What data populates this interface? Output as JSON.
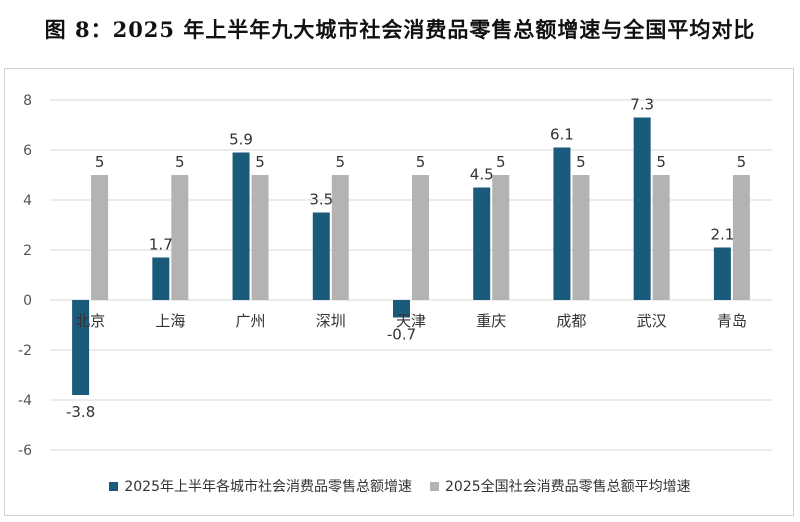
{
  "title": "图 8：2025 年上半年九大城市社会消费品零售总额增速与全国平均对比",
  "colors": {
    "city": "#1a5a7a",
    "national": "#b3b3b3",
    "grid": "#d9d9d9"
  },
  "chart_data": {
    "type": "bar",
    "categories": [
      "北京",
      "上海",
      "广州",
      "深圳",
      "天津",
      "重庆",
      "成都",
      "武汉",
      "青岛"
    ],
    "series": [
      {
        "name": "2025年上半年各城市社会消费品零售总额增速",
        "values": [
          -3.8,
          1.7,
          5.9,
          3.5,
          -0.7,
          4.5,
          6.1,
          7.3,
          2.1
        ],
        "labels": [
          "-3.8",
          "1.7",
          "5.9",
          "3.5",
          "-0.7",
          "4.5",
          "6.1",
          "7.3",
          "2.1"
        ]
      },
      {
        "name": "2025全国社会消费品零售总额平均增速",
        "values": [
          5,
          5,
          5,
          5,
          5,
          5,
          5,
          5,
          5
        ],
        "labels": [
          "5",
          "5",
          "5",
          "5",
          "5",
          "5",
          "5",
          "5",
          "5"
        ]
      }
    ],
    "ylim": [
      -6,
      8
    ],
    "yticks": [
      -6,
      -4,
      -2,
      0,
      2,
      4,
      6,
      8
    ],
    "grid": true,
    "legend_position": "bottom"
  }
}
